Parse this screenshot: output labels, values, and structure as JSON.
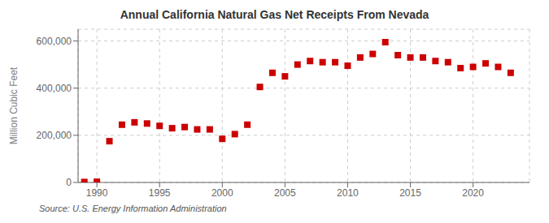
{
  "chart_data": {
    "type": "scatter",
    "title": "Annual California Natural Gas Net Receipts From Nevada",
    "ylabel": "Million Cubic Feet",
    "annotation": "Source: U.S. Energy Information Administration",
    "x": [
      1989,
      1990,
      1991,
      1992,
      1993,
      1994,
      1995,
      1996,
      1997,
      1998,
      1999,
      2000,
      2001,
      2002,
      2003,
      2004,
      2005,
      2006,
      2007,
      2008,
      2009,
      2010,
      2011,
      2012,
      2013,
      2014,
      2015,
      2016,
      2017,
      2018,
      2019,
      2020,
      2021,
      2022,
      2023
    ],
    "values": [
      2000,
      3000,
      175000,
      245000,
      255000,
      250000,
      240000,
      230000,
      235000,
      225000,
      225000,
      185000,
      205000,
      245000,
      405000,
      465000,
      450000,
      500000,
      515000,
      510000,
      510000,
      495000,
      530000,
      545000,
      595000,
      540000,
      530000,
      530000,
      515000,
      510000,
      485000,
      490000,
      505000,
      490000,
      465000
    ],
    "color": "#cc0000",
    "marker": "square",
    "xlim": [
      1988.5,
      2024.5
    ],
    "ylim": [
      0,
      650000
    ],
    "xticks": [
      1990,
      1995,
      2000,
      2005,
      2010,
      2015,
      2020
    ],
    "yticks": [
      0,
      {
        "value": 200000,
        "label": "200,000"
      },
      {
        "value": 400000,
        "label": "400,000"
      },
      {
        "value": 600000,
        "label": "600,000"
      }
    ],
    "grid": true
  }
}
